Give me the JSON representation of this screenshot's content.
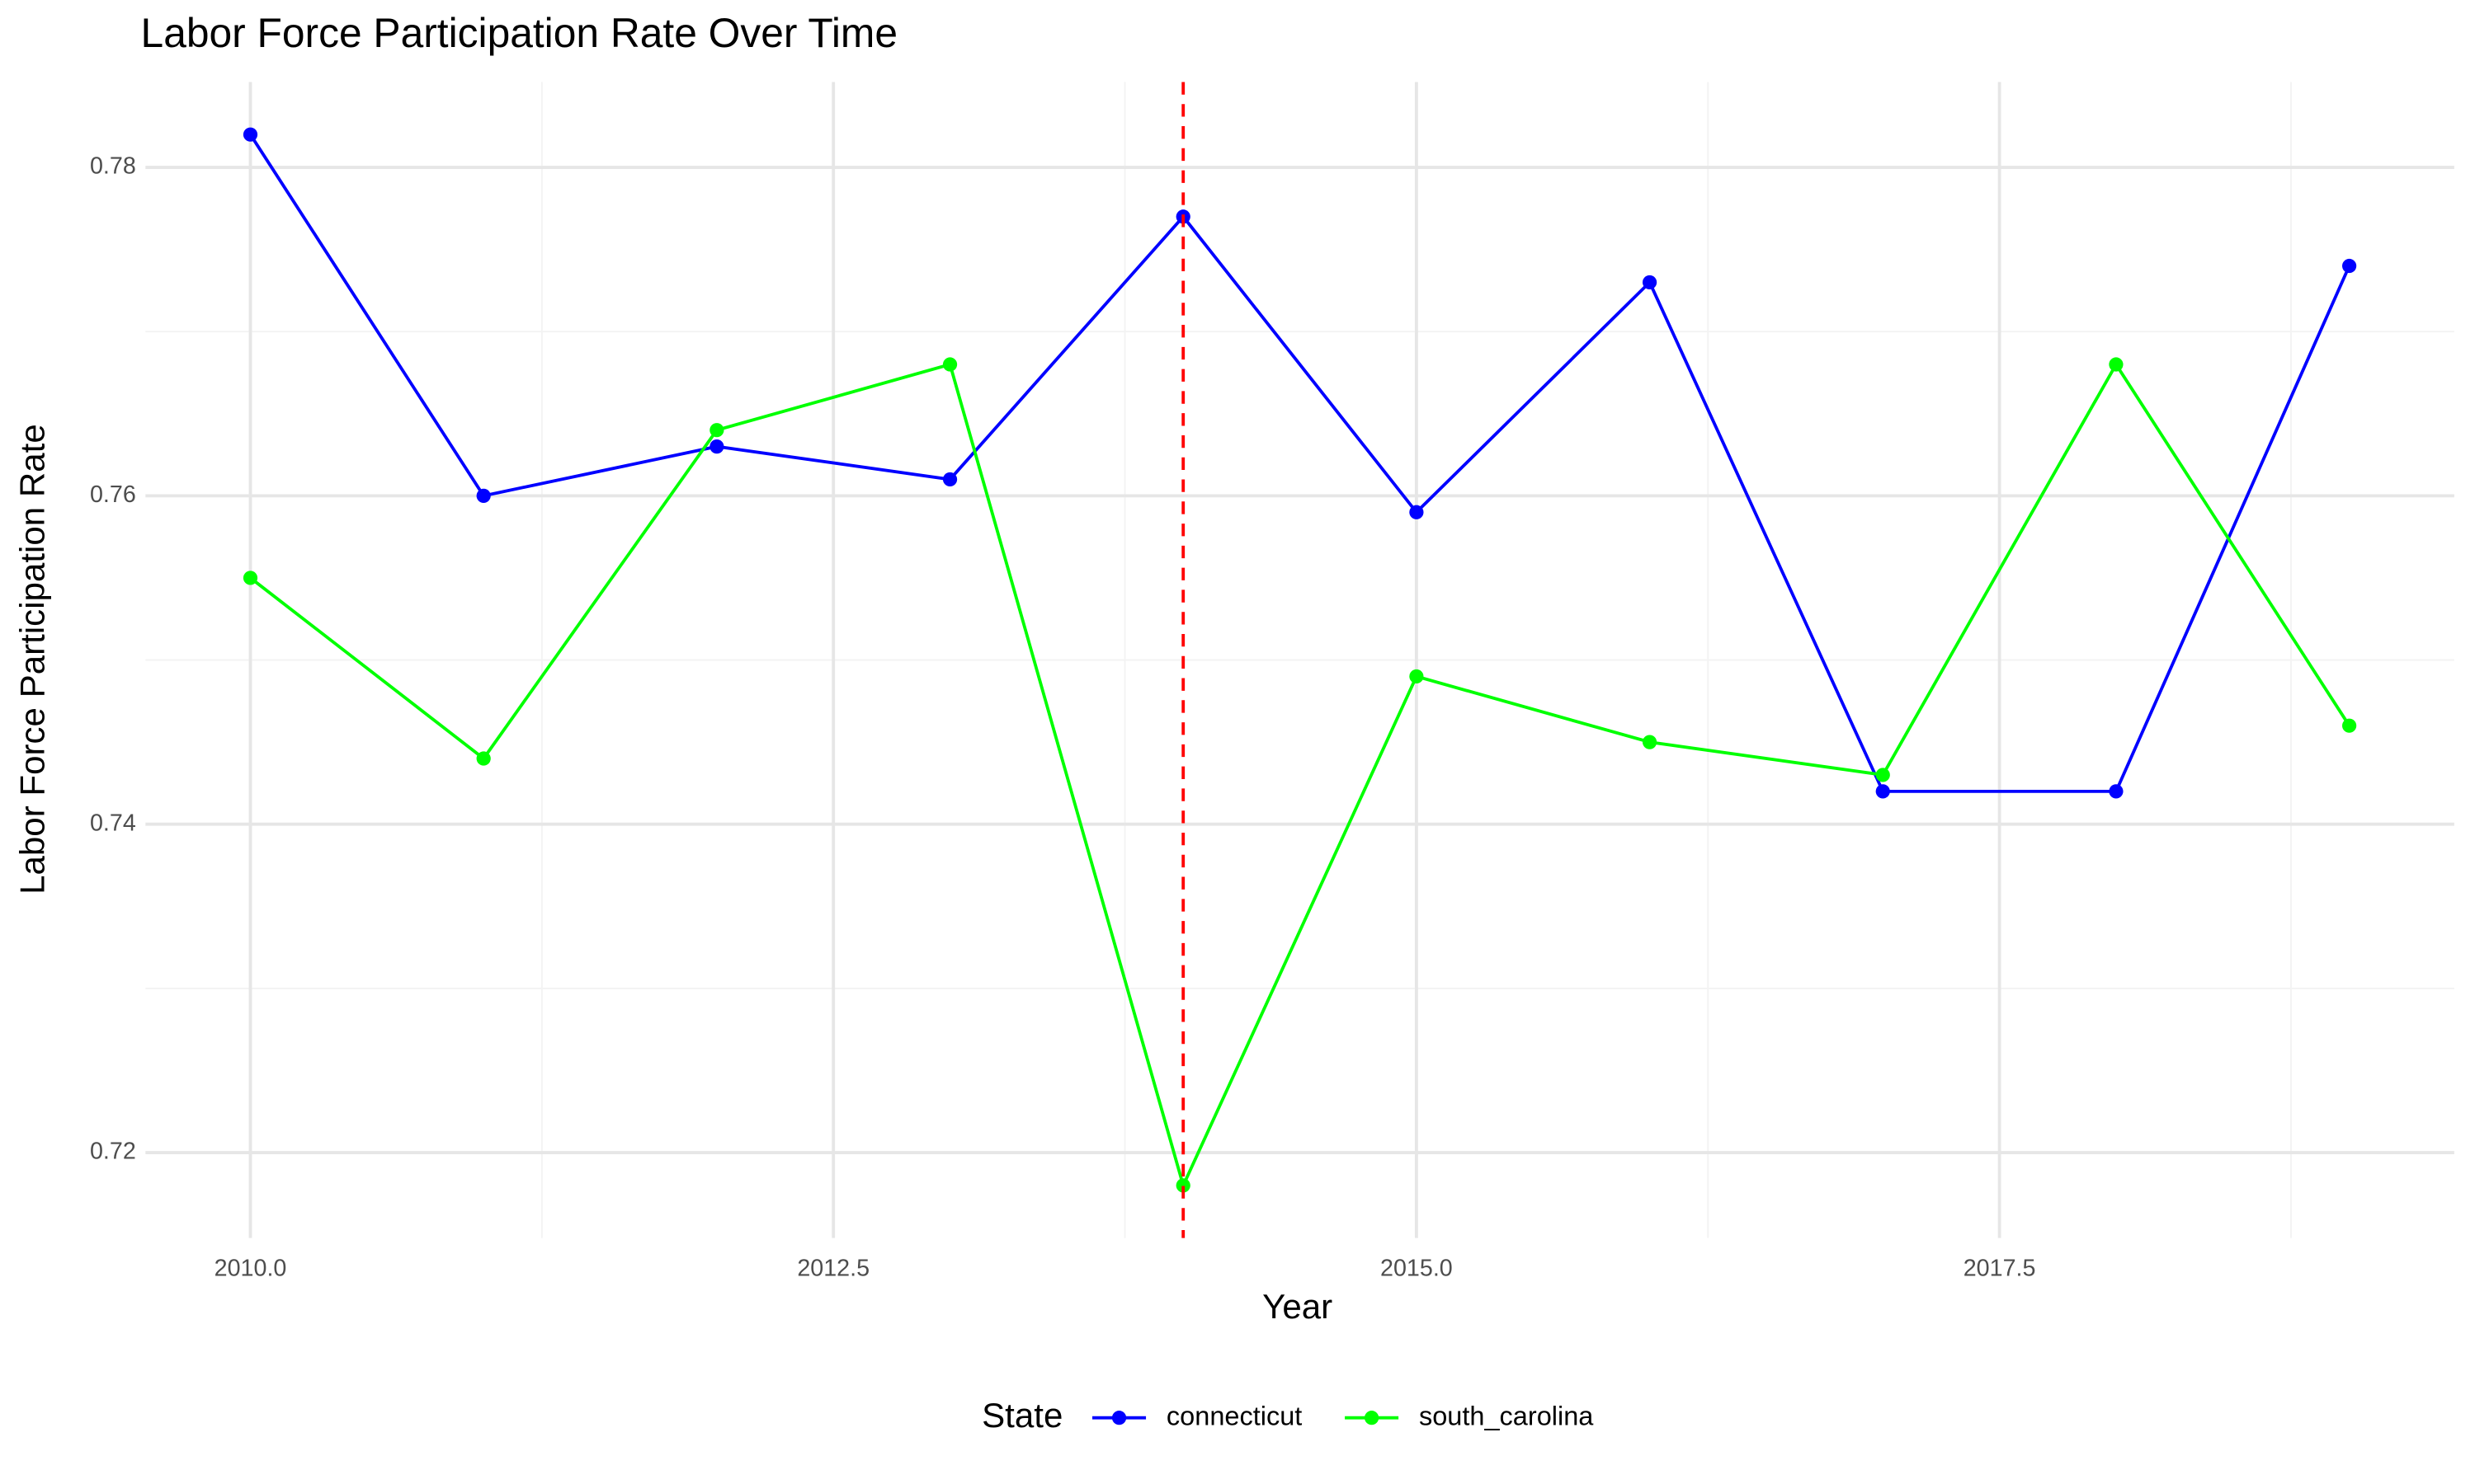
{
  "chart_data": {
    "type": "line",
    "title": "Labor Force Participation Rate Over Time",
    "x_label": "Year",
    "y_label": "Labor Force Participation Rate",
    "legend_title": "State",
    "legend_position": "bottom",
    "grid": true,
    "x": [
      2010,
      2011,
      2012,
      2013,
      2014,
      2015,
      2016,
      2017,
      2018,
      2019
    ],
    "series": [
      {
        "name": "connecticut",
        "color": "#0000ff",
        "values": [
          0.782,
          0.76,
          0.763,
          0.761,
          0.777,
          0.759,
          0.773,
          0.742,
          0.742,
          0.774
        ]
      },
      {
        "name": "south_carolina",
        "color": "#00ff00",
        "values": [
          0.755,
          0.744,
          0.764,
          0.768,
          0.718,
          0.749,
          0.745,
          0.743,
          0.768,
          0.746
        ]
      }
    ],
    "xlim": [
      2009.55,
      2019.45
    ],
    "xticks": [
      {
        "value": 2010,
        "label": "2010.0"
      },
      {
        "value": 2012.5,
        "label": "2012.5"
      },
      {
        "value": 2015,
        "label": "2015.0"
      },
      {
        "value": 2017.5,
        "label": "2017.5"
      }
    ],
    "x_minor_ticks": [
      2011.25,
      2013.75,
      2016.25,
      2018.75
    ],
    "ylim": [
      0.7148,
      0.7852
    ],
    "yticks": [
      0.72,
      0.74,
      0.76,
      0.78
    ],
    "y_minor_ticks": [
      0.73,
      0.75,
      0.77
    ],
    "vline": {
      "x": 2014,
      "color": "#ff0000",
      "dashed": true
    }
  }
}
